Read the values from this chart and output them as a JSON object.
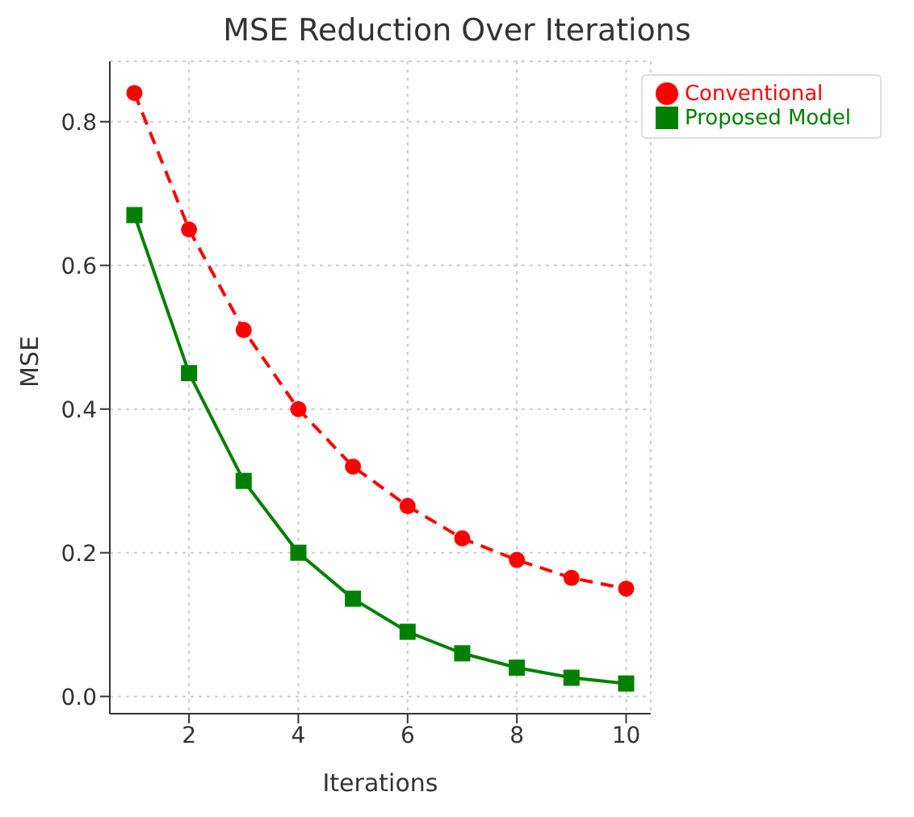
{
  "chart_data": {
    "type": "line",
    "title": "MSE Reduction Over Iterations",
    "xlabel": "Iterations",
    "ylabel": "MSE",
    "x": [
      1,
      2,
      3,
      4,
      5,
      6,
      7,
      8,
      9,
      10
    ],
    "series": [
      {
        "name": "Conventional",
        "color": "#ff0000",
        "marker": "circle",
        "line_style": "dashed",
        "values": [
          0.84,
          0.65,
          0.51,
          0.4,
          0.32,
          0.265,
          0.22,
          0.19,
          0.165,
          0.15
        ]
      },
      {
        "name": "Proposed Model",
        "color": "#008000",
        "marker": "square",
        "line_style": "solid",
        "values": [
          0.67,
          0.45,
          0.3,
          0.2,
          0.136,
          0.09,
          0.06,
          0.04,
          0.026,
          0.018
        ]
      }
    ],
    "xlim": [
      0.55,
      10.45
    ],
    "xticks": [
      2,
      4,
      6,
      8,
      10
    ],
    "ylim": [
      -0.024,
      0.884
    ],
    "yticks": [
      {
        "value": 0,
        "label": "0.0"
      },
      {
        "value": 0.2,
        "label": "0.2"
      },
      {
        "value": 0.4,
        "label": "0.4"
      },
      {
        "value": 0.6,
        "label": "0.6"
      },
      {
        "value": 0.8,
        "label": "0.8"
      }
    ],
    "grid": true,
    "legend": "top right"
  }
}
